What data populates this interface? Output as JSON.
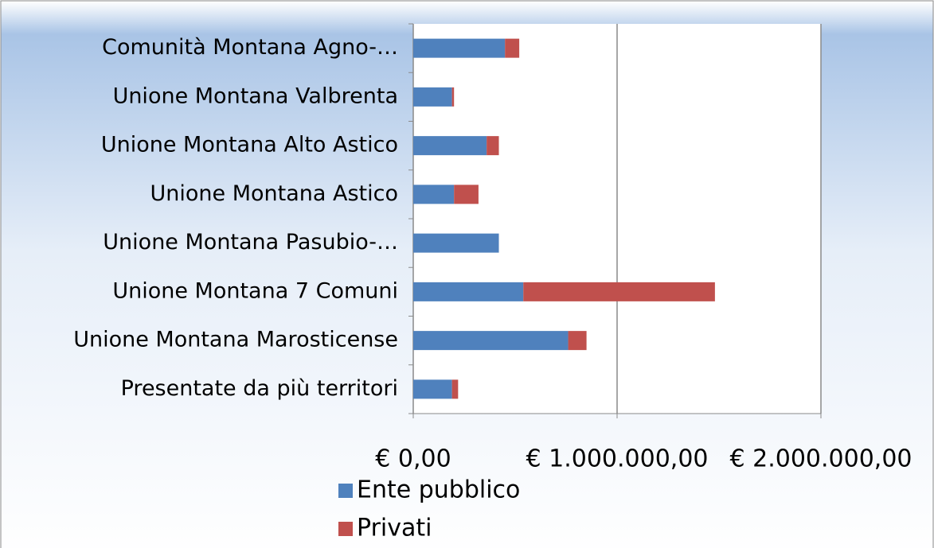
{
  "chart_data": {
    "type": "stacked_barh",
    "categories": [
      "Comunità Montana Agno-…",
      "Unione Montana Valbrenta",
      "Unione Montana Alto Astico",
      "Unione Montana Astico",
      "Unione Montana Pasubio-…",
      "Unione Montana 7 Comuni",
      "Unione Montana Marosticense",
      "Presentate da più territori"
    ],
    "series": [
      {
        "name": "Ente pubblico",
        "color": "#4f81bd",
        "values": [
          450000,
          190000,
          360000,
          200000,
          420000,
          540000,
          760000,
          190000
        ]
      },
      {
        "name": "Privati",
        "color": "#c0504d",
        "values": [
          70000,
          10000,
          60000,
          120000,
          0,
          940000,
          90000,
          30000
        ]
      }
    ],
    "xlim": [
      0,
      2000000
    ],
    "xticks": [
      {
        "value": 0,
        "label": "€ 0,00"
      },
      {
        "value": 1000000,
        "label": "€ 1.000.000,00"
      },
      {
        "value": 2000000,
        "label": "€ 2.000.000,00"
      }
    ],
    "grid": true,
    "legend": "bottom"
  }
}
